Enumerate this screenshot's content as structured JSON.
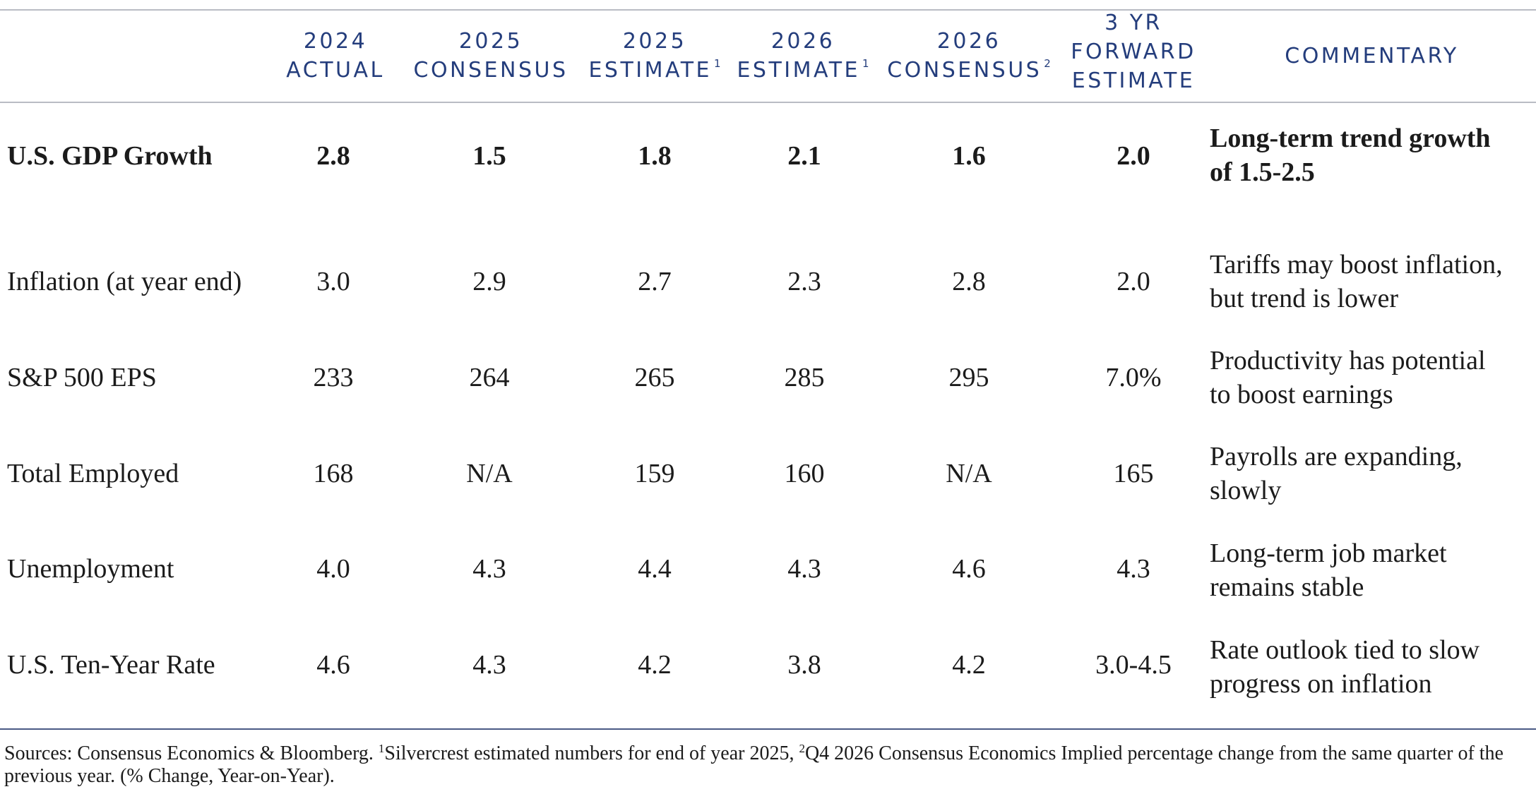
{
  "headers": {
    "c1": {
      "line1": "2024",
      "line2": "ACTUAL",
      "sup": ""
    },
    "c2": {
      "line1": "2025",
      "line2": "CONSENSUS",
      "sup": ""
    },
    "c3": {
      "line1": "2025",
      "line2": "ESTIMATE",
      "sup": "1"
    },
    "c4": {
      "line1": "2026",
      "line2": "ESTIMATE",
      "sup": "1"
    },
    "c5": {
      "line1": "2026",
      "line2": "CONSENSUS",
      "sup": "2"
    },
    "c6": {
      "line1": "3 YR",
      "line2": "FORWARD",
      "line3": "ESTIMATE"
    },
    "commentary": "COMMENTARY"
  },
  "rows": [
    {
      "label": "U.S. GDP Growth",
      "values": [
        "2.8",
        "1.5",
        "1.8",
        "2.1",
        "1.6",
        "2.0"
      ],
      "commentary": [
        "Long-term trend growth",
        "of 1.5-2.5"
      ]
    },
    {
      "label": "Inflation (at year end)",
      "values": [
        "3.0",
        "2.9",
        "2.7",
        "2.3",
        "2.8",
        "2.0"
      ],
      "commentary": [
        "Tariffs may boost inflation,",
        "but trend is lower"
      ]
    },
    {
      "label": "S&P 500 EPS",
      "values": [
        "233",
        "264",
        "265",
        "285",
        "295",
        "7.0%"
      ],
      "commentary": [
        "Productivity has potential",
        "to boost earnings"
      ]
    },
    {
      "label": "Total Employed",
      "values": [
        "168",
        "N/A",
        "159",
        "160",
        "N/A",
        "165"
      ],
      "commentary": [
        "Payrolls are expanding,",
        "slowly"
      ]
    },
    {
      "label": "Unemployment",
      "values": [
        "4.0",
        "4.3",
        "4.4",
        "4.3",
        "4.6",
        "4.3"
      ],
      "commentary": [
        "Long-term job market",
        "remains stable"
      ]
    },
    {
      "label": "U.S. Ten-Year Rate",
      "values": [
        "4.6",
        "4.3",
        "4.2",
        "3.8",
        "4.2",
        "3.0-4.5"
      ],
      "commentary": [
        "Rate outlook tied to slow",
        "progress on inflation"
      ]
    }
  ],
  "footnote": {
    "part1": "Sources: Consensus Economics & Bloomberg. ",
    "sup1": "1",
    "part2": "Silvercrest estimated numbers for end of year 2025, ",
    "sup2": "2",
    "part3": "Q4 2026 Consensus Economics Implied percentage change from the same quarter of the previous year. (% Change, Year-on-Year)."
  }
}
